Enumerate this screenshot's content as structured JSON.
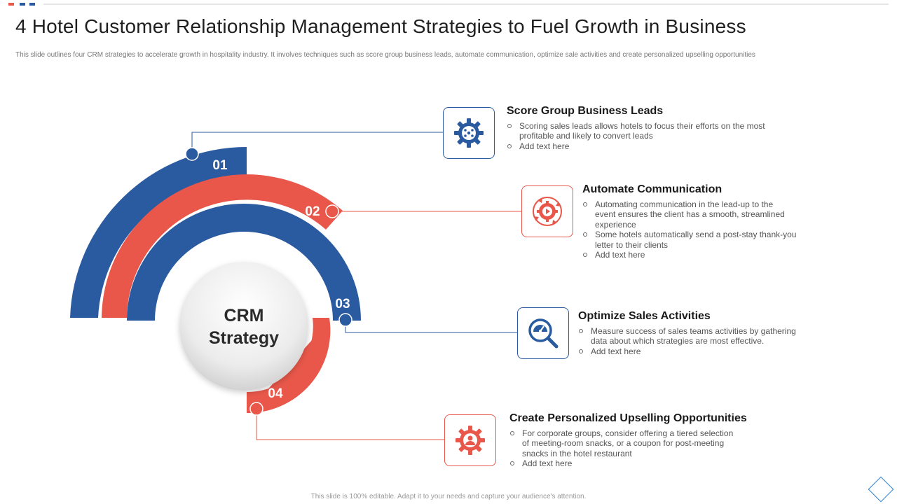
{
  "slide": {
    "title": "4 Hotel Customer Relationship Management Strategies to Fuel Growth in Business",
    "subtitle": "This slide outlines four CRM  strategies to accelerate growth in hospitality industry. It involves techniques such as score group business leads, automate  communication,  optimize sale activities and create personalized upselling opportunities",
    "footer": "This slide is 100% editable. Adapt it to your needs and capture your audience's attention."
  },
  "colors": {
    "blue": "#2a5aa0",
    "red": "#e8574a",
    "top_accent_red": "#e8574a",
    "top_accent_blue": "#2a5aa0"
  },
  "center": {
    "line1": "CRM",
    "line2": "Strategy"
  },
  "steps": [
    {
      "number": "01",
      "color": "blue",
      "icon": "gear-network-icon",
      "title": "Score Group Business Leads",
      "bullets": [
        "Scoring sales leads allows hotels to focus their efforts on the most profitable and likely to convert leads",
        "Add text here"
      ]
    },
    {
      "number": "02",
      "color": "red",
      "icon": "gear-play-cycle-icon",
      "title": "Automate Communication",
      "bullets": [
        "Automating communication in the lead-up to the event ensures the client has a smooth, streamlined experience",
        "Some hotels automatically send a post-stay thank-you letter to their clients",
        "Add text here"
      ]
    },
    {
      "number": "03",
      "color": "blue",
      "icon": "speedometer-magnifier-icon",
      "title": "Optimize Sales Activities",
      "bullets": [
        "Measure  success of sales teams activities by gathering data about which strategies are most effective.",
        "Add text here"
      ]
    },
    {
      "number": "04",
      "color": "red",
      "icon": "gear-user-icon",
      "title": "Create Personalized Upselling Opportunities",
      "bullets": [
        "For corporate groups, consider offering a tiered selection of meeting-room snacks, or a coupon for post-meeting snacks in the hotel restaurant",
        "Add text here"
      ]
    }
  ]
}
